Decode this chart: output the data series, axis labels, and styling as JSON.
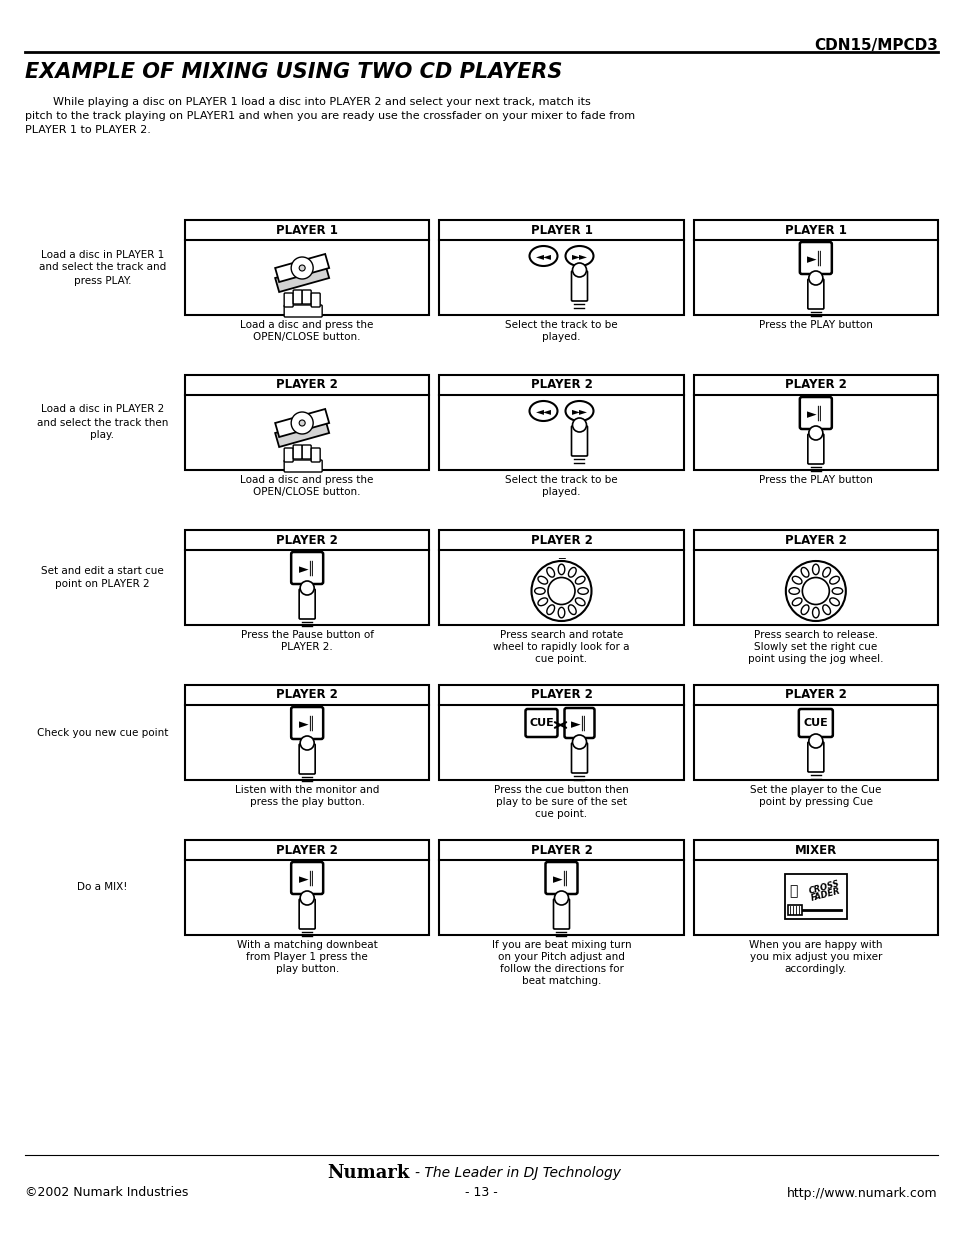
{
  "page_header": "CDN15/MPCD3",
  "title": "EXAMPLE OF MIXING USING TWO CD PLAYERS",
  "intro_text": "        While playing a disc on PLAYER 1 load a disc into PLAYER 2 and select your next track, match its\npitch to the track playing on PLAYER1 and when you are ready use the crossfader on your mixer to fade from\nPLAYER 1 to PLAYER 2.",
  "footer_brand": "Numark",
  "footer_tagline": "- The Leader in DJ Technology",
  "footer_left": "©2002 Numark Industries",
  "footer_center": "- 13 -",
  "footer_right": "http://www.numark.com",
  "bg_color": "#ffffff",
  "rows": [
    {
      "left_text": "Load a disc in PLAYER 1\nand select the track and\npress PLAY.",
      "boxes": [
        {
          "header": "PLAYER 1",
          "caption": "Load a disc and press the\nOPEN/CLOSE button.",
          "icon": "disc"
        },
        {
          "header": "PLAYER 1",
          "caption": "Select the track to be\nplayed.",
          "icon": "skip_buttons"
        },
        {
          "header": "PLAYER 1",
          "caption": "Press the PLAY button",
          "icon": "play_button"
        }
      ]
    },
    {
      "left_text": "Load a disc in PLAYER 2\nand select the track then\nplay.",
      "boxes": [
        {
          "header": "PLAYER 2",
          "caption": "Load a disc and press the\nOPEN/CLOSE button.",
          "icon": "disc"
        },
        {
          "header": "PLAYER 2",
          "caption": "Select the track to be\nplayed.",
          "icon": "skip_buttons"
        },
        {
          "header": "PLAYER 2",
          "caption": "Press the PLAY button",
          "icon": "play_button"
        }
      ]
    },
    {
      "left_text": "Set and edit a start cue\npoint on PLAYER 2",
      "boxes": [
        {
          "header": "PLAYER 2",
          "caption": "Press the Pause button of\nPLAYER 2.",
          "icon": "play_pause"
        },
        {
          "header": "PLAYER 2",
          "caption": "Press search and rotate\nwheel to rapidly look for a\ncue point.",
          "icon": "jog_press"
        },
        {
          "header": "PLAYER 2",
          "caption": "Press search to release.\nSlowly set the right cue\npoint using the jog wheel.",
          "icon": "jog_release"
        }
      ]
    },
    {
      "left_text": "Check you new cue point",
      "boxes": [
        {
          "header": "PLAYER 2",
          "caption": "Listen with the monitor and\npress the play button.",
          "icon": "play_pause"
        },
        {
          "header": "PLAYER 2",
          "caption": "Press the cue button then\nplay to be sure of the set\ncue point.",
          "icon": "cue_play"
        },
        {
          "header": "PLAYER 2",
          "caption": "Set the player to the Cue\npoint by pressing Cue",
          "icon": "cue_only"
        }
      ]
    },
    {
      "left_text": "Do a MIX!",
      "boxes": [
        {
          "header": "PLAYER 2",
          "caption": "With a matching downbeat\nfrom Player 1 press the\nplay button.",
          "icon": "play_pause"
        },
        {
          "header": "PLAYER 2",
          "caption": "If you are beat mixing turn\non your Pitch adjust and\nfollow the directions for\nbeat matching.",
          "icon": "play_pause"
        },
        {
          "header": "MIXER",
          "caption": "When you are happy with\nyou mix adjust you mixer\naccordingly.",
          "icon": "crossfader"
        }
      ]
    }
  ]
}
